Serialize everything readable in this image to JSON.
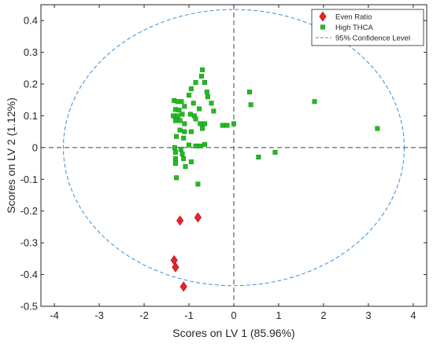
{
  "chart_data": {
    "type": "scatter",
    "xlabel": "Scores on LV 1 (85.96%)",
    "ylabel": "Scores on LV 2 (1.12%)",
    "xlim": [
      -4.3,
      4.3
    ],
    "ylim": [
      -0.5,
      0.45
    ],
    "xticks": [
      -4,
      -3,
      -2,
      -1,
      0,
      1,
      2,
      3,
      4
    ],
    "yticks": [
      -0.5,
      -0.4,
      -0.3,
      -0.2,
      -0.1,
      0,
      0.1,
      0.2,
      0.3,
      0.4
    ],
    "xtick_labels": [
      "-4",
      "-3",
      "-2",
      "-1",
      "0",
      "1",
      "2",
      "3",
      "4"
    ],
    "ytick_labels": [
      "-0.5",
      "-0.4",
      "-0.3",
      "-0.2",
      "-0.1",
      "0",
      "0.1",
      "0.2",
      "0.3",
      "0.4"
    ],
    "grid": false,
    "legend_position": "top-right",
    "series": [
      {
        "name": "Even Ratio",
        "marker": "diamond",
        "color": "#e8222a",
        "points": [
          [
            -1.2,
            -0.23
          ],
          [
            -0.8,
            -0.22
          ],
          [
            -1.33,
            -0.355
          ],
          [
            -1.3,
            -0.377
          ],
          [
            -1.12,
            -0.438
          ]
        ]
      },
      {
        "name": "High THCA",
        "marker": "square",
        "color": "#22bb22",
        "points": [
          [
            -1.33,
            0.148
          ],
          [
            -1.25,
            0.145
          ],
          [
            -1.17,
            0.145
          ],
          [
            -1.0,
            0.165
          ],
          [
            -0.95,
            0.185
          ],
          [
            -0.85,
            0.205
          ],
          [
            -0.72,
            0.225
          ],
          [
            -0.7,
            0.245
          ],
          [
            -0.65,
            0.205
          ],
          [
            -0.58,
            0.16
          ],
          [
            -0.6,
            0.175
          ],
          [
            -1.3,
            0.12
          ],
          [
            -1.22,
            0.118
          ],
          [
            -1.1,
            0.13
          ],
          [
            -0.9,
            0.14
          ],
          [
            -0.77,
            0.122
          ],
          [
            -0.5,
            0.14
          ],
          [
            -0.45,
            0.115
          ],
          [
            -1.35,
            0.1
          ],
          [
            -1.25,
            0.1
          ],
          [
            -1.15,
            0.105
          ],
          [
            -0.97,
            0.105
          ],
          [
            -0.88,
            0.1
          ],
          [
            -1.3,
            0.085
          ],
          [
            -1.2,
            0.085
          ],
          [
            -1.1,
            0.075
          ],
          [
            -0.85,
            0.09
          ],
          [
            -0.75,
            0.075
          ],
          [
            -0.65,
            0.075
          ],
          [
            -0.25,
            0.07
          ],
          [
            -1.2,
            0.055
          ],
          [
            -1.1,
            0.05
          ],
          [
            -0.95,
            0.05
          ],
          [
            -0.7,
            0.06
          ],
          [
            -1.28,
            0.035
          ],
          [
            -1.12,
            0.03
          ],
          [
            -1.0,
            0.008
          ],
          [
            -0.85,
            0.005
          ],
          [
            -0.75,
            0.005
          ],
          [
            -0.65,
            0.01
          ],
          [
            -1.32,
            0.0
          ],
          [
            -1.18,
            -0.005
          ],
          [
            -1.3,
            -0.015
          ],
          [
            -1.15,
            -0.02
          ],
          [
            -1.3,
            -0.035
          ],
          [
            -1.12,
            -0.035
          ],
          [
            -0.95,
            -0.045
          ],
          [
            -1.3,
            -0.05
          ],
          [
            -1.08,
            -0.06
          ],
          [
            -1.28,
            -0.095
          ],
          [
            -0.8,
            -0.115
          ],
          [
            -0.15,
            0.07
          ],
          [
            0.0,
            0.075
          ],
          [
            0.35,
            0.175
          ],
          [
            0.38,
            0.135
          ],
          [
            0.55,
            -0.03
          ],
          [
            0.92,
            -0.015
          ],
          [
            1.8,
            0.145
          ],
          [
            3.2,
            0.06
          ]
        ]
      }
    ],
    "confidence_ellipse": {
      "name": "95% Confidence Level",
      "color": "#3a8fd8",
      "center": [
        0,
        0
      ],
      "rx": 3.8,
      "ry": 0.435
    },
    "reference_lines": {
      "x": 0,
      "y": 0,
      "color": "#404040"
    }
  }
}
